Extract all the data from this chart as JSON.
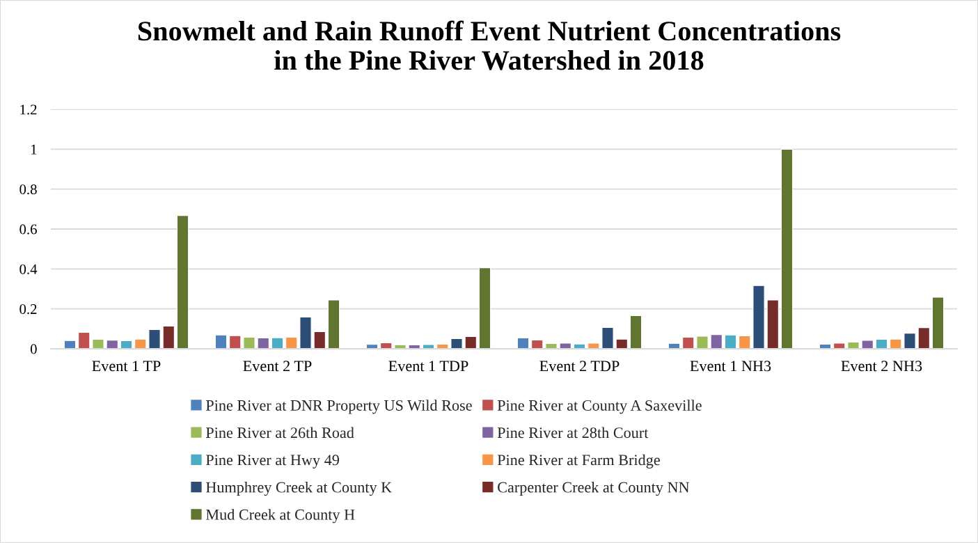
{
  "chart_data": {
    "type": "bar",
    "title": "Snowmelt and Rain Runoff Event Nutrient Concentrations\nin the Pine River Watershed in 2018",
    "categories": [
      "Event 1 TP",
      "Event 2 TP",
      "Event 1 TDP",
      "Event 2 TDP",
      "Event 1 NH3",
      "Event 2 NH3"
    ],
    "series": [
      {
        "name": "Pine River at DNR Property US Wild Rose",
        "color": "#4f81bd",
        "values": [
          0.041,
          0.069,
          0.022,
          0.054,
          0.027,
          0.023
        ]
      },
      {
        "name": "Pine River at County A Saxeville",
        "color": "#c0504d",
        "values": [
          0.082,
          0.066,
          0.03,
          0.044,
          0.058,
          0.028
        ]
      },
      {
        "name": "Pine River at 26th Road",
        "color": "#9bbb59",
        "values": [
          0.047,
          0.058,
          0.02,
          0.026,
          0.063,
          0.033
        ]
      },
      {
        "name": "Pine River at 28th Court",
        "color": "#8064a2",
        "values": [
          0.043,
          0.054,
          0.019,
          0.028,
          0.071,
          0.042
        ]
      },
      {
        "name": "Pine River at Hwy 49",
        "color": "#4bacc6",
        "values": [
          0.04,
          0.055,
          0.021,
          0.024,
          0.069,
          0.047
        ]
      },
      {
        "name": "Pine River at Farm Bridge",
        "color": "#f79646",
        "values": [
          0.048,
          0.058,
          0.023,
          0.028,
          0.065,
          0.048
        ]
      },
      {
        "name": "Humphrey Creek at County K",
        "color": "#2c4d75",
        "values": [
          0.096,
          0.159,
          0.051,
          0.107,
          0.317,
          0.078
        ]
      },
      {
        "name": "Carpenter Creek at County NN",
        "color": "#772c2a",
        "values": [
          0.114,
          0.086,
          0.061,
          0.048,
          0.244,
          0.106
        ]
      },
      {
        "name": "Mud Creek at County H",
        "color": "#5f7530",
        "values": [
          0.667,
          0.244,
          0.406,
          0.166,
          1.0,
          0.258
        ]
      }
    ],
    "ylim": [
      0,
      1.2
    ],
    "yticks": [
      0,
      0.2,
      0.4,
      0.6,
      0.8,
      1,
      1.2
    ],
    "grid": "y",
    "legend": "bottom"
  }
}
